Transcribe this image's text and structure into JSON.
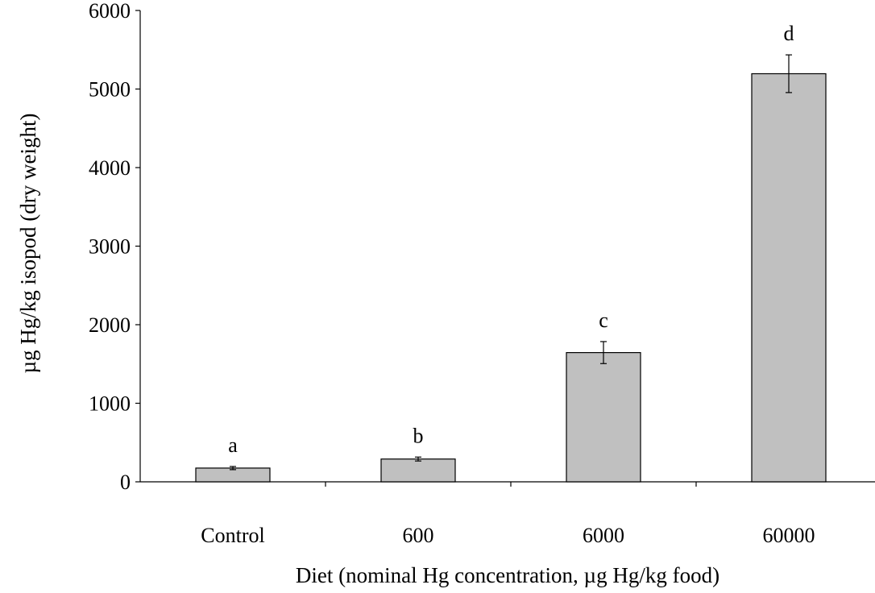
{
  "chart_data": {
    "type": "bar",
    "title": "",
    "xlabel": "Diet (nominal Hg concentration, µg Hg/kg food)",
    "ylabel": "µg Hg/kg isopod (dry weight)",
    "ylim": [
      0,
      6000
    ],
    "yticks": [
      0,
      1000,
      2000,
      3000,
      4000,
      5000,
      6000
    ],
    "categories": [
      "Control",
      "600",
      "6000",
      "60000"
    ],
    "values": [
      175,
      290,
      1645,
      5195
    ],
    "errors": [
      20,
      25,
      140,
      240
    ],
    "labels": [
      "a",
      "b",
      "c",
      "d"
    ],
    "grid": false,
    "legend": "none",
    "bar_color": "#c0c0c0",
    "bar_edge_color": "#000000"
  }
}
